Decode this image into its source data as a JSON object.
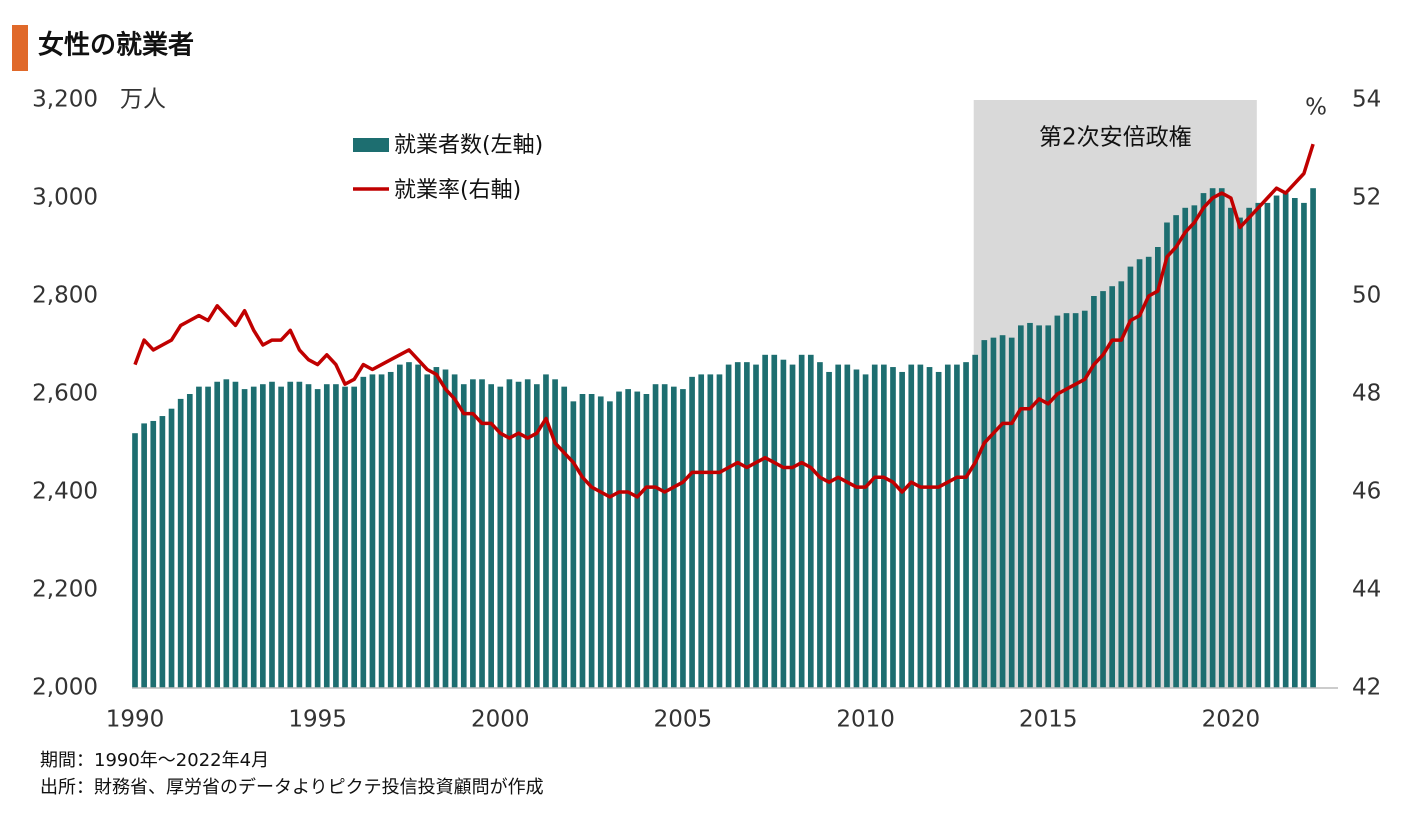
{
  "chart_data": {
    "type": "bar-line",
    "title": "女性の就業者",
    "y_unit": "万人",
    "y2_unit": "%",
    "notes": [
      "期間：1990年～2022年4月",
      "出所：財務省、厚労省のデータよりピクテ投信投資顧問が作成"
    ],
    "shade": {
      "x": [
        2012.96,
        2020.71
      ],
      "label": "第2次安倍政権",
      "color": "#d9d9d9"
    },
    "xlim": [
      1989.9,
      2022.5
    ],
    "xticks": [
      1990,
      1995,
      2000,
      2005,
      2010,
      2015,
      2020
    ],
    "ylim": [
      2000,
      3200
    ],
    "yticks": [
      {
        "value": 2000,
        "label": "2,000"
      },
      {
        "value": 2200,
        "label": "2,200"
      },
      {
        "value": 2400,
        "label": "2,400"
      },
      {
        "value": 2600,
        "label": "2,600"
      },
      {
        "value": 2800,
        "label": "2,800"
      },
      {
        "value": 3000,
        "label": "3,000"
      },
      {
        "value": 3200,
        "label": "3,200"
      }
    ],
    "y2lim": [
      42,
      54
    ],
    "y2ticks": [
      42,
      44,
      46,
      48,
      50,
      52,
      54
    ],
    "x": [
      1990,
      1990.25,
      1990.5,
      1990.75,
      1991,
      1991.25,
      1991.5,
      1991.75,
      1992,
      1992.25,
      1992.5,
      1992.75,
      1993,
      1993.25,
      1993.5,
      1993.75,
      1994,
      1994.25,
      1994.5,
      1994.75,
      1995,
      1995.25,
      1995.5,
      1995.75,
      1996,
      1996.25,
      1996.5,
      1996.75,
      1997,
      1997.25,
      1997.5,
      1997.75,
      1998,
      1998.25,
      1998.5,
      1998.75,
      1999,
      1999.25,
      1999.5,
      1999.75,
      2000,
      2000.25,
      2000.5,
      2000.75,
      2001,
      2001.25,
      2001.5,
      2001.75,
      2002,
      2002.25,
      2002.5,
      2002.75,
      2003,
      2003.25,
      2003.5,
      2003.75,
      2004,
      2004.25,
      2004.5,
      2004.75,
      2005,
      2005.25,
      2005.5,
      2005.75,
      2006,
      2006.25,
      2006.5,
      2006.75,
      2007,
      2007.25,
      2007.5,
      2007.75,
      2008,
      2008.25,
      2008.5,
      2008.75,
      2009,
      2009.25,
      2009.5,
      2009.75,
      2010,
      2010.25,
      2010.5,
      2010.75,
      2011,
      2011.25,
      2011.5,
      2011.75,
      2012,
      2012.25,
      2012.5,
      2012.75,
      2013,
      2013.25,
      2013.5,
      2013.75,
      2014,
      2014.25,
      2014.5,
      2014.75,
      2015,
      2015.25,
      2015.5,
      2015.75,
      2016,
      2016.25,
      2016.5,
      2016.75,
      2017,
      2017.25,
      2017.5,
      2017.75,
      2018,
      2018.25,
      2018.5,
      2018.75,
      2019,
      2019.25,
      2019.5,
      2019.75,
      2020,
      2020.25,
      2020.5,
      2020.75,
      2021,
      2021.25,
      2021.5,
      2021.75,
      2022,
      2022.25
    ],
    "series": [
      {
        "name": "就業者数(左軸)",
        "color": "#1d6e70",
        "values": [
          2520,
          2540,
          2545,
          2555,
          2570,
          2590,
          2600,
          2615,
          2615,
          2625,
          2630,
          2625,
          2610,
          2615,
          2620,
          2625,
          2615,
          2625,
          2625,
          2620,
          2610,
          2620,
          2620,
          2615,
          2615,
          2635,
          2640,
          2640,
          2645,
          2660,
          2665,
          2660,
          2640,
          2655,
          2650,
          2640,
          2620,
          2630,
          2630,
          2620,
          2615,
          2630,
          2625,
          2630,
          2620,
          2640,
          2630,
          2615,
          2585,
          2600,
          2600,
          2595,
          2585,
          2605,
          2610,
          2605,
          2600,
          2620,
          2620,
          2615,
          2610,
          2635,
          2640,
          2640,
          2640,
          2660,
          2665,
          2665,
          2660,
          2680,
          2680,
          2670,
          2660,
          2680,
          2680,
          2665,
          2645,
          2660,
          2660,
          2650,
          2640,
          2660,
          2660,
          2655,
          2645,
          2660,
          2660,
          2655,
          2645,
          2660,
          2660,
          2665,
          2680,
          2710,
          2715,
          2720,
          2715,
          2740,
          2745,
          2740,
          2740,
          2760,
          2765,
          2765,
          2770,
          2800,
          2810,
          2820,
          2830,
          2860,
          2875,
          2880,
          2900,
          2950,
          2965,
          2980,
          2985,
          3010,
          3020,
          3020,
          2980,
          2960,
          2980,
          2990,
          2990,
          3005,
          3010,
          3000,
          2990,
          3020
        ]
      },
      {
        "name": "就業率(右軸)",
        "color": "#c00000",
        "axis": "y2",
        "values": [
          48.6,
          49.1,
          48.9,
          49.0,
          49.1,
          49.4,
          49.5,
          49.6,
          49.5,
          49.8,
          49.6,
          49.4,
          49.7,
          49.3,
          49.0,
          49.1,
          49.1,
          49.3,
          48.9,
          48.7,
          48.6,
          48.8,
          48.6,
          48.2,
          48.3,
          48.6,
          48.5,
          48.6,
          48.7,
          48.8,
          48.9,
          48.7,
          48.5,
          48.4,
          48.1,
          47.9,
          47.6,
          47.6,
          47.4,
          47.4,
          47.2,
          47.1,
          47.2,
          47.1,
          47.2,
          47.5,
          47.0,
          46.8,
          46.6,
          46.3,
          46.1,
          46.0,
          45.9,
          46.0,
          46.0,
          45.9,
          46.1,
          46.1,
          46.0,
          46.1,
          46.2,
          46.4,
          46.4,
          46.4,
          46.4,
          46.5,
          46.6,
          46.5,
          46.6,
          46.7,
          46.6,
          46.5,
          46.5,
          46.6,
          46.5,
          46.3,
          46.2,
          46.3,
          46.2,
          46.1,
          46.1,
          46.3,
          46.3,
          46.2,
          46.0,
          46.2,
          46.1,
          46.1,
          46.1,
          46.2,
          46.3,
          46.3,
          46.6,
          47.0,
          47.2,
          47.4,
          47.4,
          47.7,
          47.7,
          47.9,
          47.8,
          48.0,
          48.1,
          48.2,
          48.3,
          48.6,
          48.8,
          49.1,
          49.1,
          49.5,
          49.6,
          50.0,
          50.1,
          50.8,
          51.0,
          51.3,
          51.5,
          51.8,
          52.0,
          52.1,
          52.0,
          51.4,
          51.6,
          51.8,
          52.0,
          52.2,
          52.1,
          52.3,
          52.5,
          53.1
        ]
      }
    ]
  }
}
